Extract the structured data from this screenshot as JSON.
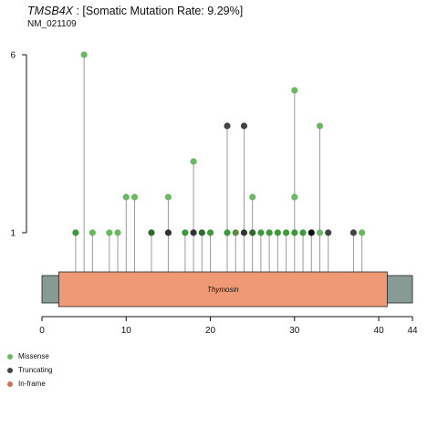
{
  "header": {
    "gene": "TMSB4X",
    "rate_text": " : [Somatic Mutation Rate: 9.29%]",
    "transcript": "NM_021109"
  },
  "chart_data": {
    "type": "lollipop",
    "xlim": [
      0,
      44
    ],
    "x_ticks": [
      0,
      10,
      20,
      30,
      40,
      44
    ],
    "y_ticks": [
      1,
      6
    ],
    "protein_length": 44,
    "domains": [
      {
        "name": "Thymosin",
        "start": 2,
        "end": 41,
        "color": "#ef9a75"
      }
    ],
    "backbone_color": "#879a95",
    "mutation_types": [
      {
        "name": "Missense",
        "color": "#6bb863"
      },
      {
        "name": "Truncating",
        "color": "#444444"
      },
      {
        "name": "In-frame",
        "color": "#c8765a"
      }
    ],
    "mutations": [
      {
        "pos": 4,
        "count": 1,
        "type": "Missense",
        "color": "#3a9b38"
      },
      {
        "pos": 5,
        "count": 6,
        "type": "Missense",
        "color": "#6bb863"
      },
      {
        "pos": 6,
        "count": 1,
        "type": "Missense",
        "color": "#6bb863"
      },
      {
        "pos": 8,
        "count": 1,
        "type": "Missense",
        "color": "#6bb863"
      },
      {
        "pos": 9,
        "count": 1,
        "type": "Missense",
        "color": "#6bb863"
      },
      {
        "pos": 10,
        "count": 2,
        "type": "Missense",
        "color": "#6bb863"
      },
      {
        "pos": 11,
        "count": 2,
        "type": "Missense",
        "color": "#6bb863"
      },
      {
        "pos": 13,
        "count": 1,
        "type": "Missense",
        "color": "#2e6b2a"
      },
      {
        "pos": 15,
        "count": 1,
        "type": "Truncating",
        "color": "#333333"
      },
      {
        "pos": 15,
        "count": 2,
        "type": "Missense",
        "color": "#6bb863"
      },
      {
        "pos": 17,
        "count": 1,
        "type": "Missense",
        "color": "#3a9b38"
      },
      {
        "pos": 18,
        "count": 1,
        "type": "Truncating",
        "color": "#333333"
      },
      {
        "pos": 18,
        "count": 3,
        "type": "Missense",
        "color": "#6bb863"
      },
      {
        "pos": 19,
        "count": 1,
        "type": "Missense",
        "color": "#2e6b2a"
      },
      {
        "pos": 20,
        "count": 1,
        "type": "Missense",
        "color": "#3a9b38"
      },
      {
        "pos": 22,
        "count": 1,
        "type": "Missense",
        "color": "#3a9b38"
      },
      {
        "pos": 22,
        "count": 4,
        "type": "Truncating",
        "color": "#444444"
      },
      {
        "pos": 23,
        "count": 1,
        "type": "Missense",
        "color": "#5b8a3a"
      },
      {
        "pos": 24,
        "count": 1,
        "type": "Truncating",
        "color": "#333333"
      },
      {
        "pos": 24,
        "count": 4,
        "type": "Truncating",
        "color": "#444444"
      },
      {
        "pos": 25,
        "count": 1,
        "type": "Missense",
        "color": "#2e6b2a"
      },
      {
        "pos": 25,
        "count": 2,
        "type": "Missense",
        "color": "#6bb863"
      },
      {
        "pos": 26,
        "count": 1,
        "type": "Missense",
        "color": "#3a9b38"
      },
      {
        "pos": 27,
        "count": 1,
        "type": "Missense",
        "color": "#3a9b38"
      },
      {
        "pos": 28,
        "count": 1,
        "type": "Missense",
        "color": "#3a9b38"
      },
      {
        "pos": 29,
        "count": 1,
        "type": "Missense",
        "color": "#3a9b38"
      },
      {
        "pos": 30,
        "count": 1,
        "type": "Missense",
        "color": "#3a9b38"
      },
      {
        "pos": 30,
        "count": 2,
        "type": "Missense",
        "color": "#6bb863"
      },
      {
        "pos": 30,
        "count": 5,
        "type": "Missense",
        "color": "#6bb863"
      },
      {
        "pos": 31,
        "count": 1,
        "type": "Missense",
        "color": "#3a9b38"
      },
      {
        "pos": 32,
        "count": 1,
        "type": "Truncating",
        "color": "#111111"
      },
      {
        "pos": 33,
        "count": 1,
        "type": "Missense",
        "color": "#6bb863"
      },
      {
        "pos": 33,
        "count": 4,
        "type": "Missense",
        "color": "#6bb863"
      },
      {
        "pos": 34,
        "count": 1,
        "type": "Truncating",
        "color": "#444444"
      },
      {
        "pos": 37,
        "count": 1,
        "type": "Truncating",
        "color": "#444444"
      },
      {
        "pos": 38,
        "count": 1,
        "type": "Missense",
        "color": "#6bb863"
      }
    ]
  }
}
